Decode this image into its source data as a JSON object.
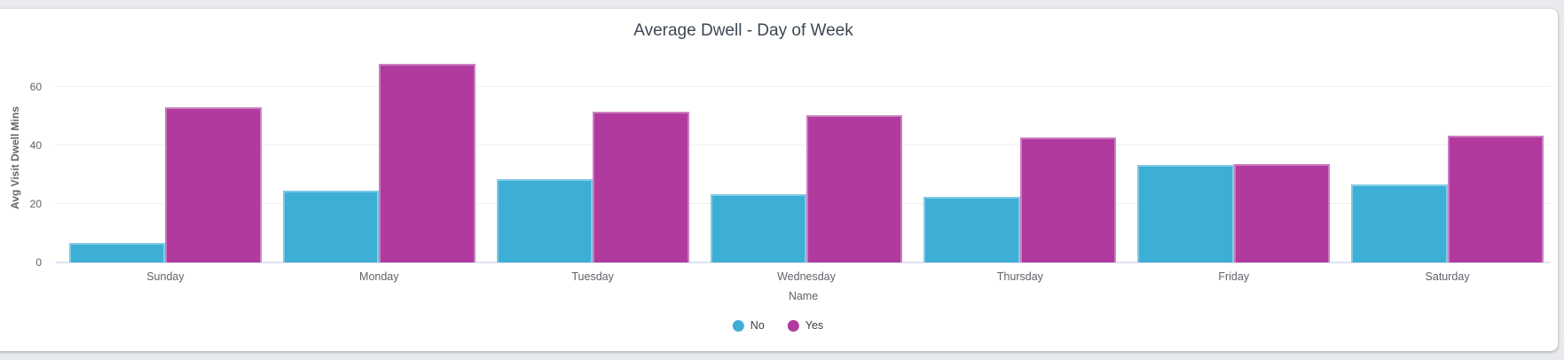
{
  "page": {
    "background_color": "#e8eaed",
    "card_color": "#ffffff"
  },
  "chart_data": {
    "type": "bar",
    "title": "Average Dwell - Day of Week",
    "xlabel": "Name",
    "ylabel": "Avg Visit Dwell Mins",
    "categories": [
      "Sunday",
      "Monday",
      "Tuesday",
      "Wednesday",
      "Thursday",
      "Friday",
      "Saturday"
    ],
    "series": [
      {
        "name": "No",
        "color": "#3dafd6",
        "values": [
          6.7,
          24.7,
          28.6,
          23.5,
          22.6,
          33.4,
          26.7
        ]
      },
      {
        "name": "Yes",
        "color": "#b03a9e",
        "values": [
          53.0,
          68.1,
          51.6,
          50.3,
          42.8,
          33.8,
          43.5
        ]
      }
    ],
    "y_ticks": [
      0,
      20,
      40,
      60
    ],
    "ylim": [
      0,
      71.6
    ],
    "grid": true,
    "legend_position": "bottom"
  }
}
